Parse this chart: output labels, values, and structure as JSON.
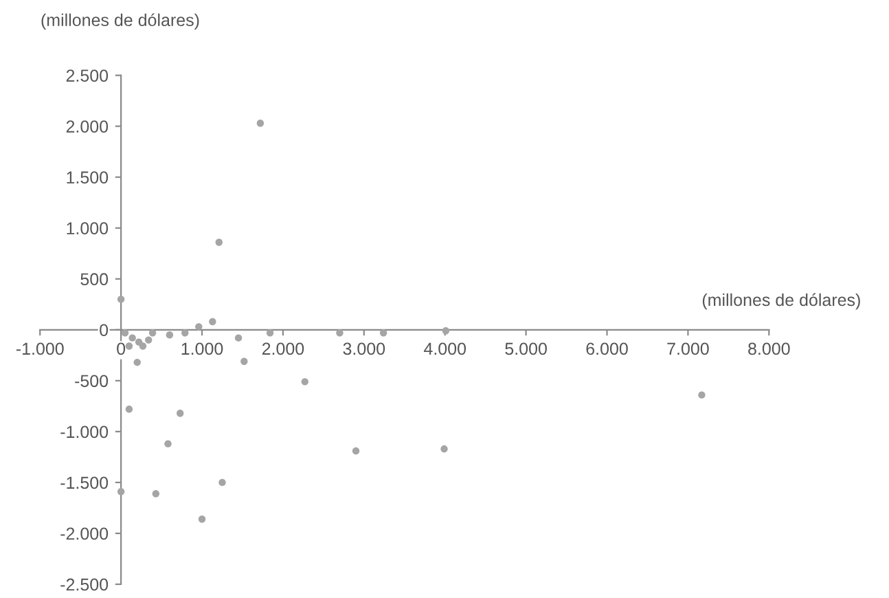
{
  "chart_data": {
    "type": "scatter",
    "xlabel": "(millones de dólares)",
    "ylabel": "(millones de dólares)",
    "x": [
      1210,
      1720,
      0,
      200,
      100,
      730,
      580,
      0,
      430,
      1250,
      1000,
      1520,
      2270,
      2900,
      3990,
      7170,
      1130,
      960,
      600,
      790,
      390,
      340,
      220,
      140,
      50,
      1450,
      1840,
      2700,
      3240,
      4010,
      100,
      270
    ],
    "values": [
      860,
      2030,
      300,
      -320,
      -780,
      -820,
      -1120,
      -1590,
      -1610,
      -1500,
      -1860,
      -310,
      -510,
      -1190,
      -1170,
      -640,
      80,
      30,
      -50,
      -30,
      -30,
      -100,
      -120,
      -80,
      -30,
      -80,
      -30,
      -30,
      -30,
      -10,
      -160,
      -160
    ],
    "color": "#a5a5a5",
    "marker": "circle",
    "grid": false,
    "legend": false,
    "xlim": [
      -1000,
      8000
    ],
    "ylim": [
      -2500,
      2500
    ],
    "xticks": [
      {
        "value": -1000,
        "label": "-1.000"
      },
      0,
      {
        "value": 1000,
        "label": "1.000"
      },
      {
        "value": 2000,
        "label": "2.000"
      },
      {
        "value": 3000,
        "label": "3.000"
      },
      {
        "value": 4000,
        "label": "4.000"
      },
      {
        "value": 5000,
        "label": "5.000"
      },
      {
        "value": 6000,
        "label": "6.000"
      },
      {
        "value": 7000,
        "label": "7.000"
      },
      {
        "value": 8000,
        "label": "8.000"
      }
    ],
    "yticks": [
      {
        "value": -2500,
        "label": "-2.500"
      },
      {
        "value": -2000,
        "label": "-2.000"
      },
      {
        "value": -1500,
        "label": "-1.500"
      },
      {
        "value": -1000,
        "label": "-1.000"
      },
      {
        "value": -500,
        "label": "-500"
      },
      0,
      500,
      {
        "value": 1000,
        "label": "1.000"
      },
      {
        "value": 1500,
        "label": "1.500"
      },
      {
        "value": 2000,
        "label": "2.000"
      },
      {
        "value": 2500,
        "label": "2.500"
      }
    ]
  }
}
